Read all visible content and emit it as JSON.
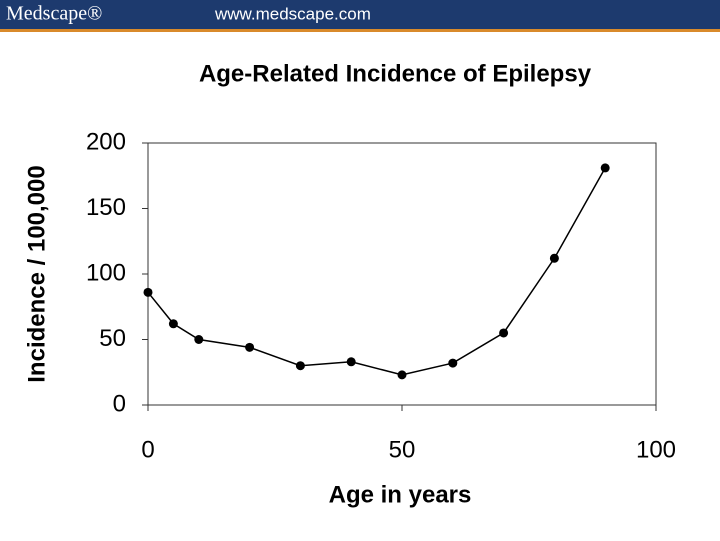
{
  "header": {
    "brand": "Medscape®",
    "url": "www.medscape.com"
  },
  "chart_data": {
    "type": "line",
    "title": "Age-Related Incidence of Epilepsy",
    "x_label": "Age in years",
    "y_label": "Incidence / 100,000",
    "x": [
      0,
      5,
      10,
      20,
      30,
      40,
      50,
      60,
      70,
      80,
      90
    ],
    "series": [
      {
        "name": "Incidence",
        "color": "#000000",
        "values": [
          86,
          62,
          50,
          44,
          30,
          33,
          23,
          32,
          55,
          112,
          181
        ]
      }
    ],
    "xlim": [
      0,
      100
    ],
    "xticks": [
      0,
      50,
      100
    ],
    "ylim": [
      0,
      200
    ],
    "yticks": [
      0,
      50,
      100,
      150,
      200
    ],
    "grid": false
  }
}
